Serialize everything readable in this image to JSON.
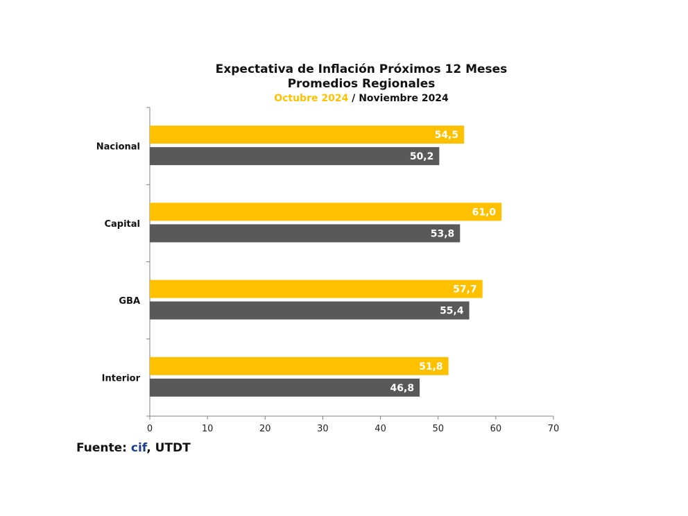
{
  "chart_data": {
    "type": "bar",
    "orientation": "horizontal",
    "title": "Expectativa de Inflación Próximos 12 Meses",
    "subtitle": "Promedios Regionales",
    "categories": [
      "Nacional",
      "Capital",
      "GBA",
      "Interior"
    ],
    "series": [
      {
        "name": "Octubre 2024",
        "color": "#FFC000",
        "values": [
          54.5,
          61.0,
          57.7,
          51.8
        ],
        "labels": [
          "54,5",
          "61,0",
          "57,7",
          "51,8"
        ]
      },
      {
        "name": "Noviembre 2024",
        "color": "#595959",
        "values": [
          50.2,
          53.8,
          55.4,
          46.8
        ],
        "labels": [
          "50,2",
          "53,8",
          "55,4",
          "46,8"
        ]
      }
    ],
    "xlim": [
      0,
      70
    ],
    "xticks": [
      0,
      10,
      20,
      30,
      40,
      50,
      60,
      70
    ],
    "grid": false,
    "legend": "in subtitle"
  },
  "subtitle_separator": " / ",
  "source": {
    "prefix": "Fuente: ",
    "brand": "cif",
    "suffix": ", UTDT"
  }
}
